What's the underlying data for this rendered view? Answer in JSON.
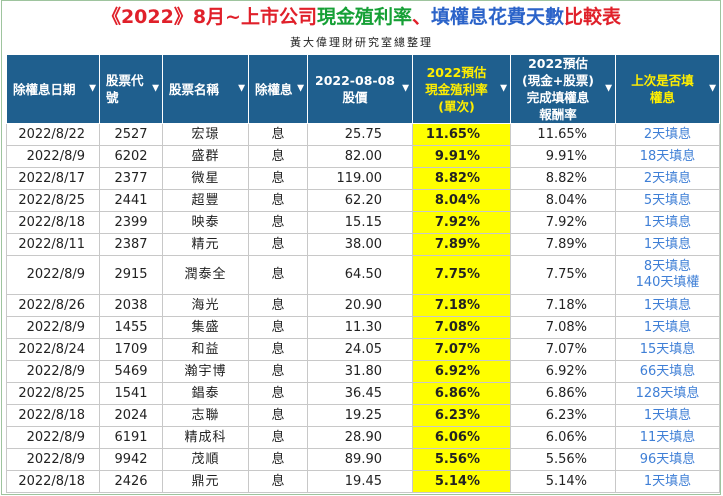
{
  "title": {
    "part1": "《2022》8月~上市公司",
    "part2": "現金殖利率",
    "part3": "、",
    "part4": "填權息花費天數",
    "part5": "比較表"
  },
  "subtitle": "黃大偉理財研究室總整理",
  "colors": {
    "header_bg": "#1f5f8e",
    "highlight_yellow": "#ffff00",
    "link_blue": "#3f7fd6",
    "title_red": "#e0202a",
    "title_green": "#16a036",
    "title_blue": "#2b63c9"
  },
  "columns": [
    {
      "label": "除權息日期",
      "icon": "filter-dropdown-icon"
    },
    {
      "label": "股票代號",
      "icon": "filter-dropdown-icon"
    },
    {
      "label": "股票名稱",
      "icon": "filter-dropdown-icon"
    },
    {
      "label": "除權息",
      "icon": "filter-dropdown-icon"
    },
    {
      "label_line1": "2022-08-08",
      "label_line2": "股價",
      "icon": "filter-dropdown-icon"
    },
    {
      "label_line1": "2022預估",
      "label_line2": "現金殖利率",
      "label_line3": "(單次)",
      "icon": "filter-dropdown-icon"
    },
    {
      "label_line1": "2022預估",
      "label_line2": "(現金+股票)",
      "label_line3": "完成填權息",
      "label_line4": "報酬率",
      "icon": "filter-dropdown-icon"
    },
    {
      "label_line1": "上次是否填",
      "label_line2": "權息",
      "icon": "filter-dropdown-icon"
    }
  ],
  "rows": [
    {
      "date": "2022/8/22",
      "code": "2527",
      "name": "宏璟",
      "type": "息",
      "price": "25.75",
      "yield": "11.65%",
      "ret": "11.65%",
      "fill": "2天填息"
    },
    {
      "date": "2022/8/9",
      "code": "6202",
      "name": "盛群",
      "type": "息",
      "price": "82.00",
      "yield": "9.91%",
      "ret": "9.91%",
      "fill": "18天填息"
    },
    {
      "date": "2022/8/17",
      "code": "2377",
      "name": "微星",
      "type": "息",
      "price": "119.00",
      "yield": "8.82%",
      "ret": "8.82%",
      "fill": "2天填息"
    },
    {
      "date": "2022/8/25",
      "code": "2441",
      "name": "超豐",
      "type": "息",
      "price": "62.20",
      "yield": "8.04%",
      "ret": "8.04%",
      "fill": "5天填息"
    },
    {
      "date": "2022/8/18",
      "code": "2399",
      "name": "映泰",
      "type": "息",
      "price": "15.15",
      "yield": "7.92%",
      "ret": "7.92%",
      "fill": "1天填息"
    },
    {
      "date": "2022/8/11",
      "code": "2387",
      "name": "精元",
      "type": "息",
      "price": "38.00",
      "yield": "7.89%",
      "ret": "7.89%",
      "fill": "1天填息"
    },
    {
      "date": "2022/8/9",
      "code": "2915",
      "name": "潤泰全",
      "type": "息",
      "price": "64.50",
      "yield": "7.75%",
      "ret": "7.75%",
      "fill": "8天填息",
      "fill2": "140天填權"
    },
    {
      "date": "2022/8/26",
      "code": "2038",
      "name": "海光",
      "type": "息",
      "price": "20.90",
      "yield": "7.18%",
      "ret": "7.18%",
      "fill": "1天填息"
    },
    {
      "date": "2022/8/9",
      "code": "1455",
      "name": "集盛",
      "type": "息",
      "price": "11.30",
      "yield": "7.08%",
      "ret": "7.08%",
      "fill": "1天填息"
    },
    {
      "date": "2022/8/24",
      "code": "1709",
      "name": "和益",
      "type": "息",
      "price": "24.05",
      "yield": "7.07%",
      "ret": "7.07%",
      "fill": "15天填息"
    },
    {
      "date": "2022/8/9",
      "code": "5469",
      "name": "瀚宇博",
      "type": "息",
      "price": "31.80",
      "yield": "6.92%",
      "ret": "6.92%",
      "fill": "66天填息"
    },
    {
      "date": "2022/8/25",
      "code": "1541",
      "name": "錩泰",
      "type": "息",
      "price": "36.45",
      "yield": "6.86%",
      "ret": "6.86%",
      "fill": "128天填息"
    },
    {
      "date": "2022/8/18",
      "code": "2024",
      "name": "志聯",
      "type": "息",
      "price": "19.25",
      "yield": "6.23%",
      "ret": "6.23%",
      "fill": "1天填息"
    },
    {
      "date": "2022/8/9",
      "code": "6191",
      "name": "精成科",
      "type": "息",
      "price": "28.90",
      "yield": "6.06%",
      "ret": "6.06%",
      "fill": "11天填息"
    },
    {
      "date": "2022/8/9",
      "code": "9942",
      "name": "茂順",
      "type": "息",
      "price": "89.90",
      "yield": "5.56%",
      "ret": "5.56%",
      "fill": "96天填息"
    },
    {
      "date": "2022/8/18",
      "code": "2426",
      "name": "鼎元",
      "type": "息",
      "price": "19.45",
      "yield": "5.14%",
      "ret": "5.14%",
      "fill": "1天填息"
    }
  ]
}
